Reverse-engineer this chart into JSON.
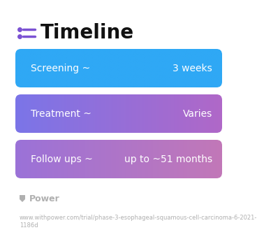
{
  "title": "Timeline",
  "background_color": "#ffffff",
  "icon_color": "#7b52d3",
  "title_color": "#111111",
  "title_fontsize": 20,
  "rows": [
    {
      "label": "Screening ~",
      "value": "3 weeks",
      "color_left": "#2fa8f5",
      "color_right": "#2fa8f5"
    },
    {
      "label": "Treatment ~",
      "value": "Varies",
      "color_left": "#7b75e8",
      "color_right": "#b068c8"
    },
    {
      "label": "Follow ups ~",
      "value": "up to ~51 months",
      "color_left": "#9b72d8",
      "color_right": "#c278b8"
    }
  ],
  "footer_logo_text": "Power",
  "footer_url": "www.withpower.com/trial/phase-3-esophageal-squamous-cell-carcinoma-6-2021-\n1186d",
  "footer_color": "#b0b0b0",
  "footer_fontsize": 6.0,
  "row_label_fontsize": 10,
  "row_value_fontsize": 10
}
